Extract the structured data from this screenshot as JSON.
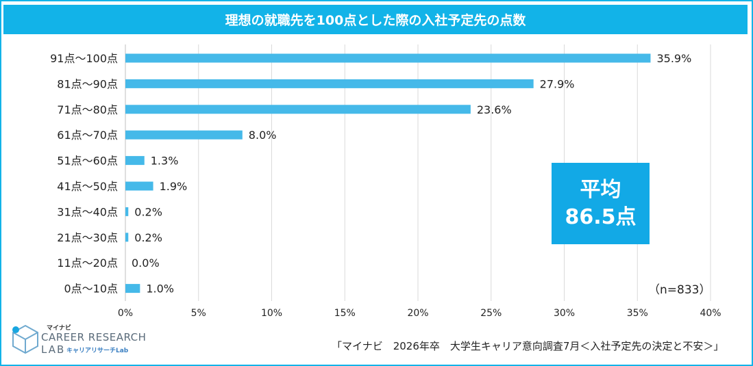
{
  "header": {
    "title": "理想の就職先を100点とした際の入社予定先の点数"
  },
  "chart_data": {
    "type": "bar",
    "orientation": "horizontal",
    "title": "理想の就職先を100点とした際の入社予定先の点数",
    "categories": [
      "91点～100点",
      "81点～90点",
      "71点～80点",
      "61点～70点",
      "51点～60点",
      "41点～50点",
      "31点～40点",
      "21点～30点",
      "11点～20点",
      "0点～10点"
    ],
    "values": [
      35.9,
      27.9,
      23.6,
      8.0,
      1.3,
      1.9,
      0.2,
      0.2,
      0.0,
      1.0
    ],
    "value_labels": [
      "35.9%",
      "27.9%",
      "23.6%",
      "8.0%",
      "1.3%",
      "1.9%",
      "0.2%",
      "0.2%",
      "0.0%",
      "1.0%"
    ],
    "xlim": [
      0,
      40
    ],
    "xticks": [
      "0%",
      "5%",
      "10%",
      "15%",
      "20%",
      "25%",
      "30%",
      "35%",
      "40%"
    ],
    "xtick_values": [
      0,
      5,
      10,
      15,
      20,
      25,
      30,
      35,
      40
    ],
    "grid": true,
    "bar_color": "#45b9e9"
  },
  "annotation": {
    "line1": "平均",
    "line2": "86.5点",
    "color": "#12a9e6"
  },
  "sample_size": "（n=833）",
  "source": "「マイナビ　2026年卒　大学生キャリア意向調査7月＜入社予定先の決定と不安＞」",
  "logo": {
    "brand": "マイナビ",
    "line1": "CAREER RESEARCH",
    "line2": "LAB",
    "sub": "キャリアリサーチLab"
  },
  "colors": {
    "accent": "#12b3e8"
  }
}
